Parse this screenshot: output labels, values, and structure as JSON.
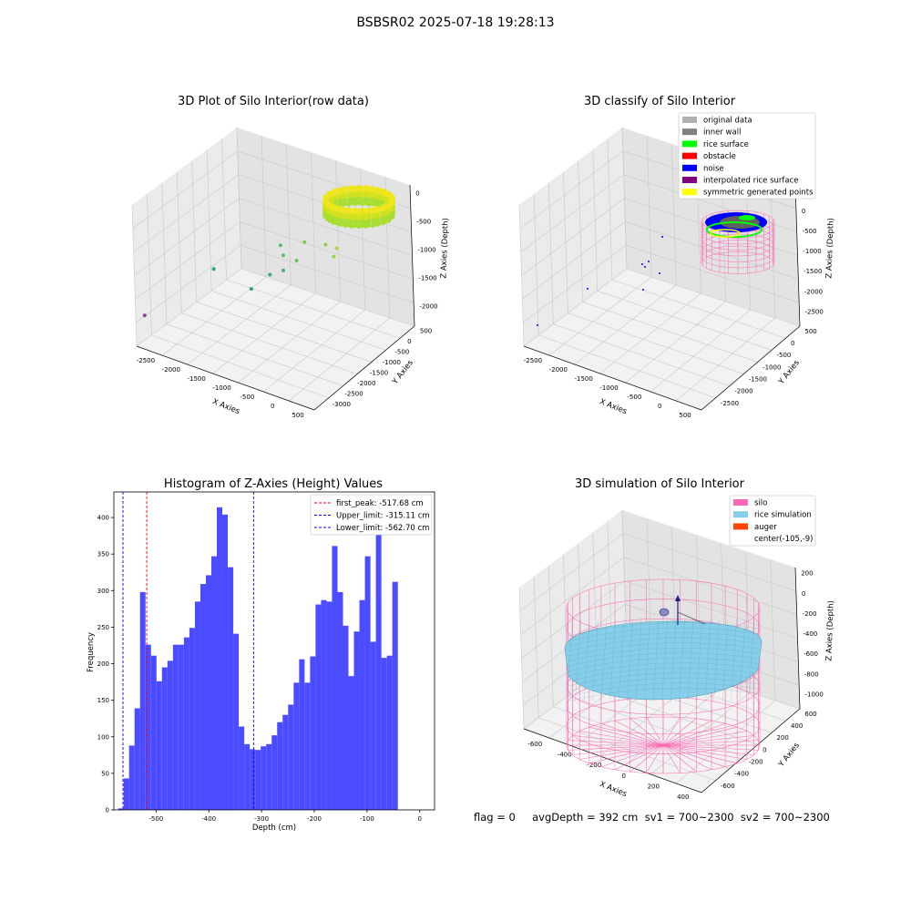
{
  "figure_title": "BSBSR02 2025-07-18 19:28:13",
  "status_line": "flag = 0     avgDepth = 392 cm  sv1 = 700~2300  sv2 = 700~2300",
  "colors": {
    "hist_bar": "#4b4bff",
    "first_peak": "#ff0000",
    "limits": "#0000ff",
    "silo": "#ff69b4",
    "rice_simulation": "#87ceeb",
    "auger": "#ff4500",
    "original_data": "#b0b0b0",
    "inner_wall": "#808080",
    "rice_surface": "#00ff00",
    "obstacle": "#ff0000",
    "noise": "#0000ff",
    "interpolated_rice_surface": "#800080",
    "symmetric_generated_points": "#ffff00"
  },
  "chart_data": [
    {
      "type": "scatter",
      "title": "3D Plot of Silo Interior(row data)",
      "xlabel": "X Axies",
      "ylabel": "Y Axies",
      "zlabel": "Z Axies (Depth)",
      "x_ticks": [
        "-2500",
        "-2000",
        "-1500",
        "-1000",
        "-500",
        "0",
        "500"
      ],
      "y_ticks": [
        "500",
        "0",
        "-500",
        "-1000",
        "-1500",
        "-2000",
        "-2500",
        "-3000"
      ],
      "z_ticks": [
        "0",
        "-500",
        "-1000",
        "-1500",
        "-2000"
      ],
      "xlim": [
        -2700,
        600
      ],
      "ylim": [
        -3000,
        600
      ],
      "zlim": [
        -2200,
        100
      ],
      "points": [
        {
          "x": -2600,
          "y": -2900,
          "z": -1700
        },
        {
          "x": -1900,
          "y": -1700,
          "z": -1100
        },
        {
          "x": -1300,
          "y": -1500,
          "z": -1300
        },
        {
          "x": -1100,
          "y": -1200,
          "z": -1100
        },
        {
          "x": -900,
          "y": -1100,
          "z": -1000
        },
        {
          "x": -950,
          "y": -1000,
          "z": -800
        },
        {
          "x": -1050,
          "y": -900,
          "z": -700
        },
        {
          "x": -800,
          "y": -800,
          "z": -900
        },
        {
          "x": -700,
          "y": -700,
          "z": -600
        },
        {
          "x": -600,
          "y": -100,
          "z": -800
        },
        {
          "x": -400,
          "y": -200,
          "z": -900
        },
        {
          "x": -300,
          "y": -300,
          "z": -700
        }
      ]
    },
    {
      "type": "scatter",
      "title": "3D classify of Silo Interior",
      "xlabel": "X Axies",
      "ylabel": "Y Axies",
      "zlabel": "Z Axies (Depth)",
      "x_ticks": [
        "-2500",
        "-2000",
        "-1500",
        "-1000",
        "-500",
        "0",
        "500"
      ],
      "y_ticks": [
        "500",
        "0",
        "-500",
        "-1000",
        "-1500",
        "-2000",
        "-2500"
      ],
      "z_ticks": [
        "500",
        "0",
        "-500",
        "-1000",
        "-1500",
        "-2000",
        "-2500"
      ],
      "legend": [
        "original data",
        "inner wall",
        "rice surface",
        "obstacle",
        "noise",
        "interpolated rice surface",
        "symmetric generated points"
      ],
      "legend_position": "top-right",
      "noise_points": [
        {
          "x": -2600,
          "y": -2800,
          "z": -1600
        },
        {
          "x": -1900,
          "y": -1700,
          "z": -1200
        },
        {
          "x": -1300,
          "y": -1400,
          "z": -1300
        },
        {
          "x": -1000,
          "y": -1200,
          "z": -1000
        },
        {
          "x": -900,
          "y": -1100,
          "z": -900
        },
        {
          "x": -800,
          "y": -900,
          "z": -1100
        },
        {
          "x": -700,
          "y": -700,
          "z": -800
        }
      ]
    },
    {
      "type": "bar",
      "title": "Histogram of Z-Axies (Height) Values",
      "xlabel": "Depth (cm)",
      "ylabel": "Frequency",
      "xlim": [
        -580,
        28
      ],
      "ylim": [
        0,
        435
      ],
      "x_ticks": [
        -500,
        -400,
        -300,
        -200,
        -100,
        0
      ],
      "y_ticks": [
        0,
        50,
        100,
        150,
        200,
        250,
        300,
        350,
        400
      ],
      "bin_start": -572,
      "bin_width": 10.4,
      "values": [
        2,
        43,
        88,
        139,
        298,
        226,
        211,
        176,
        195,
        204,
        226,
        226,
        236,
        249,
        285,
        309,
        321,
        347,
        414,
        404,
        332,
        241,
        114,
        90,
        83,
        82,
        87,
        90,
        102,
        120,
        130,
        144,
        174,
        206,
        174,
        210,
        281,
        287,
        285,
        361,
        298,
        252,
        183,
        244,
        287,
        347,
        230,
        409,
        208,
        211,
        312
      ],
      "vlines": [
        {
          "name": "first_peak: -517.68 cm",
          "x": -517.68,
          "color": "#ff0000"
        },
        {
          "name": "Upper_limit: -315.11 cm",
          "x": -315.11,
          "color": "#0000ff"
        },
        {
          "name": "Lower_limit: -562.70 cm",
          "x": -562.7,
          "color": "#0000ff"
        }
      ],
      "legend_position": "top-right"
    },
    {
      "type": "area",
      "title": "3D simulation of Silo Interior",
      "xlabel": "X Axies",
      "ylabel": "Y Axies",
      "zlabel": "Z Axies (Depth)",
      "x_ticks": [
        "-600",
        "-400",
        "-200",
        "0",
        "200",
        "400"
      ],
      "y_ticks": [
        "600",
        "400",
        "200",
        "0",
        "-200",
        "-400",
        "-600"
      ],
      "z_ticks": [
        "200",
        "0",
        "-200",
        "-400",
        "-600",
        "-800",
        "-1000"
      ],
      "legend": [
        "silo",
        "rice simulation",
        "auger",
        "center(-105,-9)"
      ],
      "legend_position": "top-right"
    }
  ]
}
